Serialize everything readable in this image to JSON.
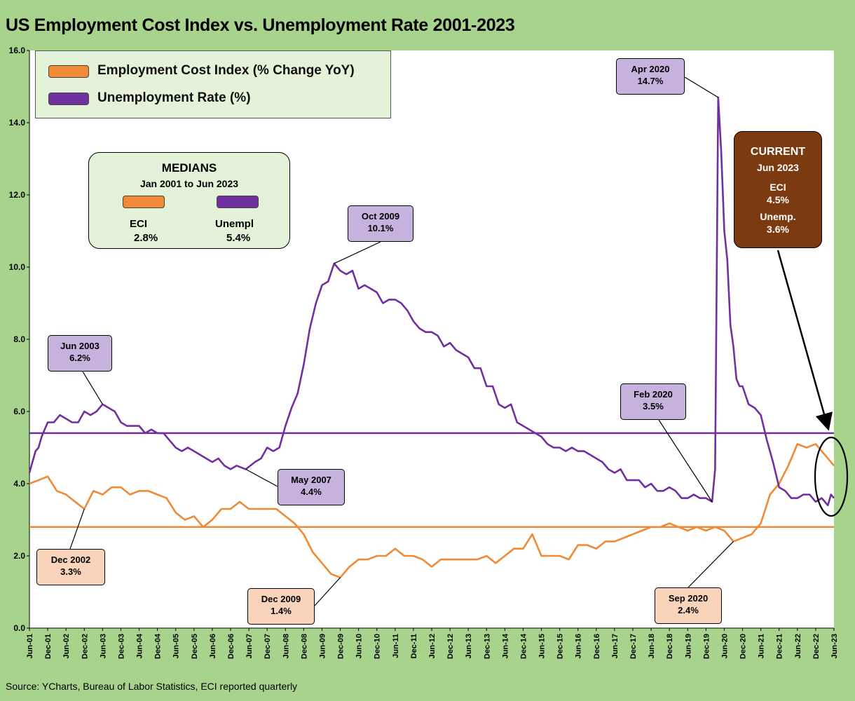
{
  "title": "US Employment Cost Index vs. Unemployment Rate 2001-2023",
  "source": "Source: YCharts, Bureau of Labor Statistics, ECI reported quarterly",
  "colors": {
    "frame": "#a8d38c",
    "plot_bg": "#ffffff",
    "eci": "#f08a36",
    "unemployment": "#7030a0",
    "callout_purple": "#c6b3dd",
    "callout_peach": "#f9d4bb",
    "current_box": "#7b3a10",
    "panel": "#e4f2d9"
  },
  "legend": {
    "eci_label": "Employment Cost Index (% Change YoY)",
    "unemp_label": "Unemployment Rate (%)"
  },
  "medians_box": {
    "title": "MEDIANS",
    "subtitle": "Jan 2001 to Jun 2023",
    "eci_label": "ECI",
    "eci_value": "2.8%",
    "unemp_label": "Unempl",
    "unemp_value": "5.4%"
  },
  "current_box": {
    "title": "CURRENT",
    "date": "Jun 2023",
    "eci_label": "ECI",
    "eci_value": "4.5%",
    "unemp_label": "Unemp.",
    "unemp_value": "3.6%"
  },
  "callouts": [
    {
      "id": "jun-2003",
      "date": "Jun 2003",
      "value": "6.2%",
      "style": "purple"
    },
    {
      "id": "may-2007",
      "date": "May 2007",
      "value": "4.4%",
      "style": "purple"
    },
    {
      "id": "oct-2009",
      "date": "Oct 2009",
      "value": "10.1%",
      "style": "purple"
    },
    {
      "id": "apr-2020",
      "date": "Apr 2020",
      "value": "14.7%",
      "style": "purple"
    },
    {
      "id": "feb-2020",
      "date": "Feb 2020",
      "value": "3.5%",
      "style": "purple"
    },
    {
      "id": "dec-2002",
      "date": "Dec 2002",
      "value": "3.3%",
      "style": "peach"
    },
    {
      "id": "dec-2009",
      "date": "Dec 2009",
      "value": "1.4%",
      "style": "peach"
    },
    {
      "id": "sep-2020",
      "date": "Sep 2020",
      "value": "2.4%",
      "style": "peach"
    }
  ],
  "chart_data": {
    "type": "line",
    "x_start": "Jun-01",
    "x_end": "Jun-23",
    "x_ticks": [
      "Jun-01",
      "Dec-01",
      "Jun-02",
      "Dec-02",
      "Jun-03",
      "Dec-03",
      "Jun-04",
      "Dec-04",
      "Jun-05",
      "Dec-05",
      "Jun-06",
      "Dec-06",
      "Jun-07",
      "Dec-07",
      "Jun-08",
      "Dec-08",
      "Jun-09",
      "Dec-09",
      "Jun-10",
      "Dec-10",
      "Jun-11",
      "Dec-11",
      "Jun-12",
      "Dec-12",
      "Jun-13",
      "Dec-13",
      "Jun-14",
      "Dec-14",
      "Jun-15",
      "Dec-15",
      "Jun-16",
      "Dec-16",
      "Jun-17",
      "Dec-17",
      "Jun-18",
      "Dec-18",
      "Jun-19",
      "Dec-19",
      "Jun-20",
      "Dec-20",
      "Jun-21",
      "Dec-21",
      "Jun-22",
      "Dec-22",
      "Jun-23"
    ],
    "y_ticks": [
      "0.0",
      "2.0",
      "4.0",
      "6.0",
      "8.0",
      "10.0",
      "12.0",
      "14.0",
      "16.0"
    ],
    "ylim": [
      0,
      16
    ],
    "grid": false,
    "legend_position": "top-left",
    "medians": {
      "eci": 2.8,
      "unemployment": 5.4
    },
    "series": [
      {
        "name": "Employment Cost Index (% Change YoY)",
        "color": "#f08a36",
        "points": [
          [
            "Jun-01",
            4.0
          ],
          [
            "Sep-01",
            4.1
          ],
          [
            "Dec-01",
            4.2
          ],
          [
            "Mar-02",
            3.8
          ],
          [
            "Jun-02",
            3.7
          ],
          [
            "Sep-02",
            3.5
          ],
          [
            "Dec-02",
            3.3
          ],
          [
            "Mar-03",
            3.8
          ],
          [
            "Jun-03",
            3.7
          ],
          [
            "Sep-03",
            3.9
          ],
          [
            "Dec-03",
            3.9
          ],
          [
            "Mar-04",
            3.7
          ],
          [
            "Jun-04",
            3.8
          ],
          [
            "Sep-04",
            3.8
          ],
          [
            "Dec-04",
            3.7
          ],
          [
            "Mar-05",
            3.6
          ],
          [
            "Jun-05",
            3.2
          ],
          [
            "Sep-05",
            3.0
          ],
          [
            "Dec-05",
            3.1
          ],
          [
            "Mar-06",
            2.8
          ],
          [
            "Jun-06",
            3.0
          ],
          [
            "Sep-06",
            3.3
          ],
          [
            "Dec-06",
            3.3
          ],
          [
            "Mar-07",
            3.5
          ],
          [
            "Jun-07",
            3.3
          ],
          [
            "Sep-07",
            3.3
          ],
          [
            "Dec-07",
            3.3
          ],
          [
            "Mar-08",
            3.3
          ],
          [
            "Jun-08",
            3.1
          ],
          [
            "Sep-08",
            2.9
          ],
          [
            "Dec-08",
            2.6
          ],
          [
            "Mar-09",
            2.1
          ],
          [
            "Jun-09",
            1.8
          ],
          [
            "Sep-09",
            1.5
          ],
          [
            "Dec-09",
            1.4
          ],
          [
            "Mar-10",
            1.7
          ],
          [
            "Jun-10",
            1.9
          ],
          [
            "Sep-10",
            1.9
          ],
          [
            "Dec-10",
            2.0
          ],
          [
            "Mar-11",
            2.0
          ],
          [
            "Jun-11",
            2.2
          ],
          [
            "Sep-11",
            2.0
          ],
          [
            "Dec-11",
            2.0
          ],
          [
            "Mar-12",
            1.9
          ],
          [
            "Jun-12",
            1.7
          ],
          [
            "Sep-12",
            1.9
          ],
          [
            "Dec-12",
            1.9
          ],
          [
            "Mar-13",
            1.9
          ],
          [
            "Jun-13",
            1.9
          ],
          [
            "Sep-13",
            1.9
          ],
          [
            "Dec-13",
            2.0
          ],
          [
            "Mar-14",
            1.8
          ],
          [
            "Jun-14",
            2.0
          ],
          [
            "Sep-14",
            2.2
          ],
          [
            "Dec-14",
            2.2
          ],
          [
            "Mar-15",
            2.6
          ],
          [
            "Jun-15",
            2.0
          ],
          [
            "Sep-15",
            2.0
          ],
          [
            "Dec-15",
            2.0
          ],
          [
            "Mar-16",
            1.9
          ],
          [
            "Jun-16",
            2.3
          ],
          [
            "Sep-16",
            2.3
          ],
          [
            "Dec-16",
            2.2
          ],
          [
            "Mar-17",
            2.4
          ],
          [
            "Jun-17",
            2.4
          ],
          [
            "Sep-17",
            2.5
          ],
          [
            "Dec-17",
            2.6
          ],
          [
            "Mar-18",
            2.7
          ],
          [
            "Jun-18",
            2.8
          ],
          [
            "Sep-18",
            2.8
          ],
          [
            "Dec-18",
            2.9
          ],
          [
            "Mar-19",
            2.8
          ],
          [
            "Jun-19",
            2.7
          ],
          [
            "Sep-19",
            2.8
          ],
          [
            "Dec-19",
            2.7
          ],
          [
            "Mar-20",
            2.8
          ],
          [
            "Jun-20",
            2.7
          ],
          [
            "Sep-20",
            2.4
          ],
          [
            "Dec-20",
            2.5
          ],
          [
            "Mar-21",
            2.6
          ],
          [
            "Jun-21",
            2.9
          ],
          [
            "Sep-21",
            3.7
          ],
          [
            "Dec-21",
            4.0
          ],
          [
            "Mar-22",
            4.5
          ],
          [
            "Jun-22",
            5.1
          ],
          [
            "Sep-22",
            5.0
          ],
          [
            "Dec-22",
            5.1
          ],
          [
            "Mar-23",
            4.8
          ],
          [
            "Jun-23",
            4.5
          ]
        ]
      },
      {
        "name": "Unemployment Rate (%)",
        "color": "#7030a0",
        "points": [
          [
            "Jun-01",
            4.3
          ],
          [
            "Jul-01",
            4.6
          ],
          [
            "Aug-01",
            4.9
          ],
          [
            "Sep-01",
            5.0
          ],
          [
            "Oct-01",
            5.3
          ],
          [
            "Nov-01",
            5.5
          ],
          [
            "Dec-01",
            5.7
          ],
          [
            "Feb-02",
            5.7
          ],
          [
            "Apr-02",
            5.9
          ],
          [
            "Jun-02",
            5.8
          ],
          [
            "Aug-02",
            5.7
          ],
          [
            "Oct-02",
            5.7
          ],
          [
            "Dec-02",
            6.0
          ],
          [
            "Feb-03",
            5.9
          ],
          [
            "Apr-03",
            6.0
          ],
          [
            "Jun-03",
            6.2
          ],
          [
            "Aug-03",
            6.1
          ],
          [
            "Oct-03",
            6.0
          ],
          [
            "Dec-03",
            5.7
          ],
          [
            "Feb-04",
            5.6
          ],
          [
            "Apr-04",
            5.6
          ],
          [
            "Jun-04",
            5.6
          ],
          [
            "Aug-04",
            5.4
          ],
          [
            "Oct-04",
            5.5
          ],
          [
            "Dec-04",
            5.4
          ],
          [
            "Feb-05",
            5.4
          ],
          [
            "Apr-05",
            5.2
          ],
          [
            "Jun-05",
            5.0
          ],
          [
            "Aug-05",
            4.9
          ],
          [
            "Oct-05",
            5.0
          ],
          [
            "Dec-05",
            4.9
          ],
          [
            "Feb-06",
            4.8
          ],
          [
            "Apr-06",
            4.7
          ],
          [
            "Jun-06",
            4.6
          ],
          [
            "Aug-06",
            4.7
          ],
          [
            "Oct-06",
            4.5
          ],
          [
            "Dec-06",
            4.4
          ],
          [
            "Feb-07",
            4.5
          ],
          [
            "May-07",
            4.4
          ],
          [
            "Aug-07",
            4.6
          ],
          [
            "Oct-07",
            4.7
          ],
          [
            "Dec-07",
            5.0
          ],
          [
            "Feb-08",
            4.9
          ],
          [
            "Apr-08",
            5.0
          ],
          [
            "Jun-08",
            5.6
          ],
          [
            "Aug-08",
            6.1
          ],
          [
            "Oct-08",
            6.5
          ],
          [
            "Dec-08",
            7.3
          ],
          [
            "Feb-09",
            8.3
          ],
          [
            "Apr-09",
            9.0
          ],
          [
            "Jun-09",
            9.5
          ],
          [
            "Aug-09",
            9.6
          ],
          [
            "Oct-09",
            10.1
          ],
          [
            "Dec-09",
            9.9
          ],
          [
            "Feb-10",
            9.8
          ],
          [
            "Apr-10",
            9.9
          ],
          [
            "Jun-10",
            9.4
          ],
          [
            "Aug-10",
            9.5
          ],
          [
            "Oct-10",
            9.4
          ],
          [
            "Dec-10",
            9.3
          ],
          [
            "Feb-11",
            9.0
          ],
          [
            "Apr-11",
            9.1
          ],
          [
            "Jun-11",
            9.1
          ],
          [
            "Aug-11",
            9.0
          ],
          [
            "Oct-11",
            8.8
          ],
          [
            "Dec-11",
            8.5
          ],
          [
            "Feb-12",
            8.3
          ],
          [
            "Apr-12",
            8.2
          ],
          [
            "Jun-12",
            8.2
          ],
          [
            "Aug-12",
            8.1
          ],
          [
            "Oct-12",
            7.8
          ],
          [
            "Dec-12",
            7.9
          ],
          [
            "Feb-13",
            7.7
          ],
          [
            "Apr-13",
            7.6
          ],
          [
            "Jun-13",
            7.5
          ],
          [
            "Aug-13",
            7.2
          ],
          [
            "Oct-13",
            7.2
          ],
          [
            "Dec-13",
            6.7
          ],
          [
            "Feb-14",
            6.7
          ],
          [
            "Apr-14",
            6.2
          ],
          [
            "Jun-14",
            6.1
          ],
          [
            "Aug-14",
            6.2
          ],
          [
            "Oct-14",
            5.7
          ],
          [
            "Dec-14",
            5.6
          ],
          [
            "Feb-15",
            5.5
          ],
          [
            "Apr-15",
            5.4
          ],
          [
            "Jun-15",
            5.3
          ],
          [
            "Aug-15",
            5.1
          ],
          [
            "Oct-15",
            5.0
          ],
          [
            "Dec-15",
            5.0
          ],
          [
            "Feb-16",
            4.9
          ],
          [
            "Apr-16",
            5.0
          ],
          [
            "Jun-16",
            4.9
          ],
          [
            "Aug-16",
            4.9
          ],
          [
            "Oct-16",
            4.8
          ],
          [
            "Dec-16",
            4.7
          ],
          [
            "Feb-17",
            4.6
          ],
          [
            "Apr-17",
            4.4
          ],
          [
            "Jun-17",
            4.3
          ],
          [
            "Aug-17",
            4.4
          ],
          [
            "Oct-17",
            4.1
          ],
          [
            "Dec-17",
            4.1
          ],
          [
            "Feb-18",
            4.1
          ],
          [
            "Apr-18",
            3.9
          ],
          [
            "Jun-18",
            4.0
          ],
          [
            "Aug-18",
            3.8
          ],
          [
            "Oct-18",
            3.8
          ],
          [
            "Dec-18",
            3.9
          ],
          [
            "Feb-19",
            3.8
          ],
          [
            "Apr-19",
            3.6
          ],
          [
            "Jun-19",
            3.6
          ],
          [
            "Aug-19",
            3.7
          ],
          [
            "Oct-19",
            3.6
          ],
          [
            "Dec-19",
            3.6
          ],
          [
            "Feb-20",
            3.5
          ],
          [
            "Mar-20",
            4.4
          ],
          [
            "Apr-20",
            14.7
          ],
          [
            "May-20",
            13.2
          ],
          [
            "Jun-20",
            11.0
          ],
          [
            "Jul-20",
            10.2
          ],
          [
            "Aug-20",
            8.4
          ],
          [
            "Sep-20",
            7.8
          ],
          [
            "Oct-20",
            6.9
          ],
          [
            "Nov-20",
            6.7
          ],
          [
            "Dec-20",
            6.7
          ],
          [
            "Feb-21",
            6.2
          ],
          [
            "Apr-21",
            6.1
          ],
          [
            "Jun-21",
            5.9
          ],
          [
            "Aug-21",
            5.2
          ],
          [
            "Oct-21",
            4.6
          ],
          [
            "Dec-21",
            3.9
          ],
          [
            "Feb-22",
            3.8
          ],
          [
            "Apr-22",
            3.6
          ],
          [
            "Jun-22",
            3.6
          ],
          [
            "Aug-22",
            3.7
          ],
          [
            "Oct-22",
            3.7
          ],
          [
            "Dec-22",
            3.5
          ],
          [
            "Feb-23",
            3.6
          ],
          [
            "Apr-23",
            3.4
          ],
          [
            "May-23",
            3.7
          ],
          [
            "Jun-23",
            3.6
          ]
        ]
      }
    ]
  }
}
